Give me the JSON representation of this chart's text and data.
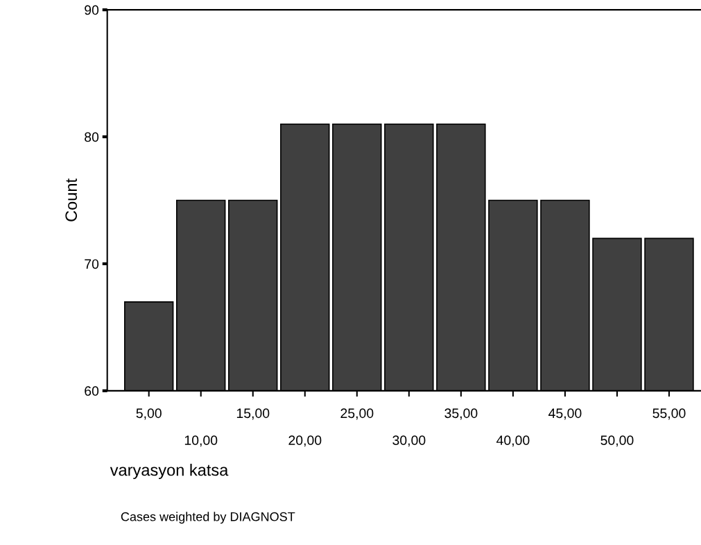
{
  "chart_data": {
    "type": "bar",
    "xlabel": "varyasyon katsa",
    "ylabel": "Count",
    "categories": [
      "5,00",
      "10,00",
      "15,00",
      "20,00",
      "25,00",
      "30,00",
      "35,00",
      "40,00",
      "45,00",
      "50,00",
      "55,00"
    ],
    "values": [
      67,
      75,
      75,
      81,
      81,
      81,
      81,
      75,
      75,
      72,
      72
    ],
    "color": "#404040",
    "ylim": [
      60,
      90
    ],
    "yticks": [
      60,
      70,
      80,
      90
    ],
    "annotations": [
      "Cases weighted by DIAGNOST"
    ]
  }
}
